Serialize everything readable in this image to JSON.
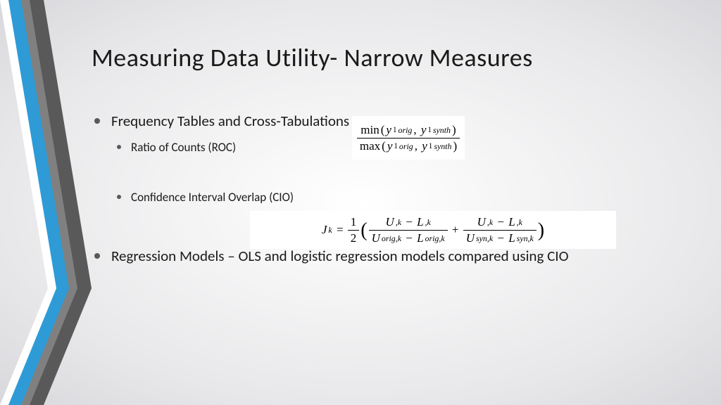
{
  "title": "Measuring Data Utility- Narrow Measures",
  "bullets": {
    "b1": "Frequency Tables and Cross-Tabulations",
    "b1a": "Ratio of Counts (ROC)",
    "b1b": "Confidence Interval Overlap (CIO)",
    "b2": "Regression Models – OLS and logistic regression models compared using CIO"
  },
  "bullet_color": "#595959",
  "decor": {
    "grey_dark": "#595959",
    "grey_mid": "#808080",
    "blue": "#2e9bd6",
    "white": "#ffffff"
  },
  "formula1": {
    "num_op": "min",
    "den_op": "max",
    "arg1_base": "y",
    "arg1_sup": "1",
    "arg1_sub": "orig",
    "arg2_base": "y",
    "arg2_sup": "1",
    "arg2_sub": "synth"
  },
  "formula2": {
    "lhs_base": "J",
    "lhs_sub": "k",
    "half_num": "1",
    "half_den": "2",
    "t1_num_l": "U",
    "t1_num_l_sub": ",k",
    "t1_num_r": "L",
    "t1_num_r_sub": ",k",
    "t1_den_l": "U",
    "t1_den_l_sub": "orig,k",
    "t1_den_r": "L",
    "t1_den_r_sub": "orig,k",
    "t2_num_l": "U",
    "t2_num_l_sub": ",k",
    "t2_num_r": "L",
    "t2_num_r_sub": ",k",
    "t2_den_l": "U",
    "t2_den_l_sub": "syn,k",
    "t2_den_r": "L",
    "t2_den_r_sub": "syn,k"
  }
}
